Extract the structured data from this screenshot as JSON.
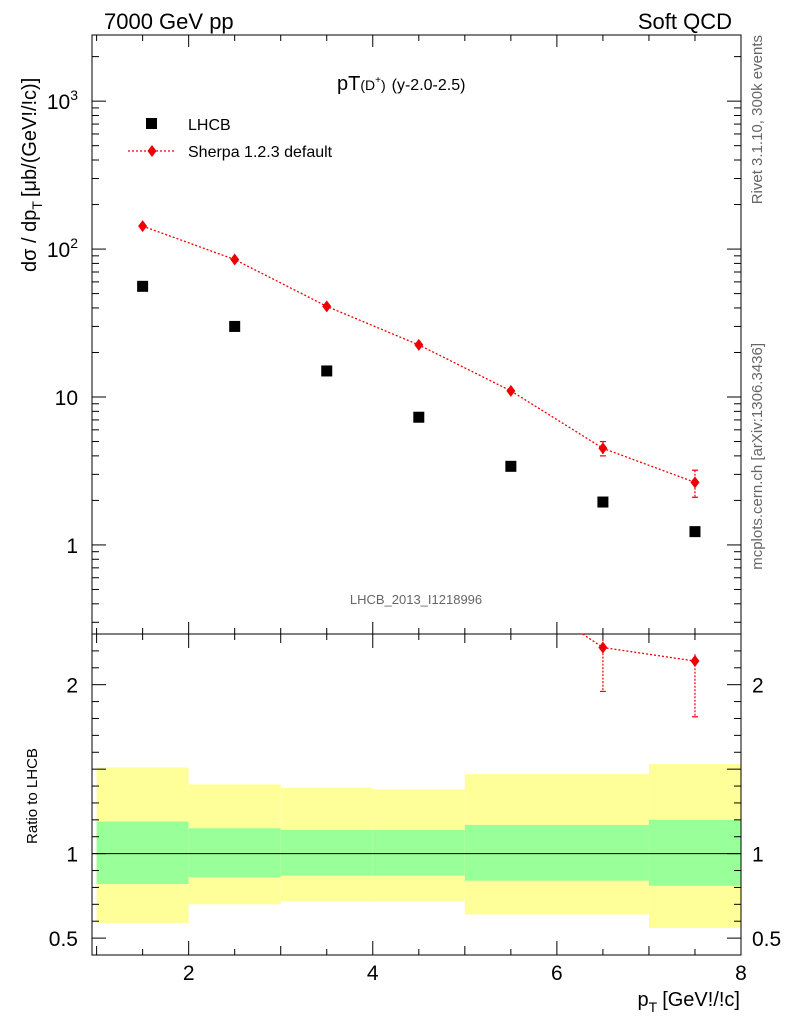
{
  "header": {
    "left": "7000 GeV pp",
    "right": "Soft QCD"
  },
  "side_labels": {
    "rivet": "Rivet 3.1.10,  300k events",
    "source": "mcplots.cern.ch [arXiv:1306.3436]"
  },
  "chart_data": [
    {
      "type": "scatter",
      "panel": "main",
      "title_main": "pT",
      "title_sub": "(D",
      "title_sup": "+",
      "title_close": ")",
      "title_range": "(y-2.0-2.5)",
      "ylabel": "dσ / dp",
      "ylabel_sub": "T",
      "ylabel_unit": "[μb/(GeV!/!c)]",
      "yscale": "log",
      "ylim": [
        0.25,
        2800
      ],
      "xlim": [
        0.95,
        8.0
      ],
      "y_ticks": [
        {
          "value": 1,
          "base": "1",
          "exp": ""
        },
        {
          "value": 10,
          "base": "10",
          "exp": ""
        },
        {
          "value": 100,
          "base": "10",
          "exp": "2"
        },
        {
          "value": 1000,
          "base": "10",
          "exp": "3"
        }
      ],
      "annotation": "LHCB_2013_I1218996",
      "legend_position": "top-left",
      "series": [
        {
          "name": "LHCB",
          "marker": "square",
          "color": "#000000",
          "x": [
            1.5,
            2.5,
            3.5,
            4.5,
            5.5,
            6.5,
            7.5
          ],
          "y": [
            56,
            30,
            15,
            7.3,
            3.4,
            1.95,
            1.23
          ]
        },
        {
          "name": "Sherpa 1.2.3 default",
          "marker": "diamond",
          "line": "dotted",
          "color": "#ee0000",
          "x": [
            1.5,
            2.5,
            3.5,
            4.5,
            5.5,
            6.5,
            7.5
          ],
          "y": [
            143,
            85,
            41,
            22.5,
            11,
            4.5,
            2.65
          ],
          "yerr": [
            5,
            3,
            1.5,
            1,
            0.8,
            0.5,
            0.55
          ]
        }
      ]
    },
    {
      "type": "area",
      "panel": "ratio",
      "ylabel": "Ratio to LHCB",
      "xlabel": "p",
      "xlabel_sub": "T",
      "xlabel_unit": "[GeV!/!c]",
      "ylim": [
        0.4,
        2.3
      ],
      "xlim": [
        0.95,
        8.0
      ],
      "x_ticks": [
        2,
        4,
        6,
        8
      ],
      "y_ticks": [
        {
          "value": 0.5,
          "label": "0.5"
        },
        {
          "value": 1,
          "label": "1"
        },
        {
          "value": 2,
          "label": "2"
        }
      ],
      "bands": [
        {
          "x0": 1,
          "x1": 2,
          "inner_low": 0.82,
          "inner_high": 1.19,
          "outer_low": 0.59,
          "outer_high": 1.51
        },
        {
          "x0": 2,
          "x1": 3,
          "inner_low": 0.86,
          "inner_high": 1.15,
          "outer_low": 0.7,
          "outer_high": 1.41
        },
        {
          "x0": 3,
          "x1": 4,
          "inner_low": 0.87,
          "inner_high": 1.14,
          "outer_low": 0.72,
          "outer_high": 1.39
        },
        {
          "x0": 4,
          "x1": 5,
          "inner_low": 0.87,
          "inner_high": 1.14,
          "outer_low": 0.72,
          "outer_high": 1.38
        },
        {
          "x0": 5,
          "x1": 7,
          "inner_low": 0.84,
          "inner_high": 1.17,
          "outer_low": 0.64,
          "outer_high": 1.47
        },
        {
          "x0": 7,
          "x1": 8,
          "inner_low": 0.81,
          "inner_high": 1.2,
          "outer_low": 0.56,
          "outer_high": 1.53
        }
      ],
      "inner_color": "#99ff99",
      "outer_color": "#ffff99",
      "series": [
        {
          "name": "Sherpa 1.2.3 default",
          "color": "#ee0000",
          "x": [
            6.5,
            7.5
          ],
          "y": [
            2.22,
            2.14
          ],
          "yerr_low": [
            0.26,
            0.33
          ],
          "yerr_high": [
            0.05,
            0.04
          ],
          "line_enter_from": {
            "x": 6.28,
            "y": 2.3
          }
        }
      ]
    }
  ]
}
